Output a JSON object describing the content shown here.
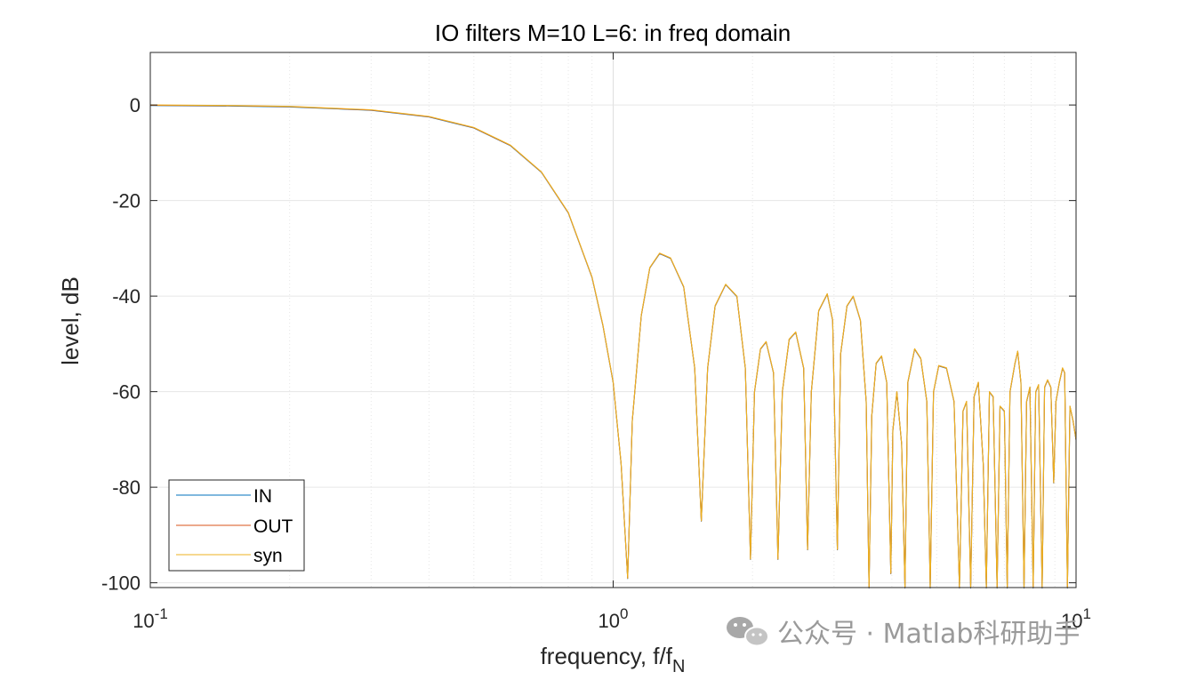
{
  "chart_data": {
    "type": "line",
    "title": "IO filters M=10 L=6: in freq domain",
    "xlabel": "frequency, f/f",
    "xlabel_sub": "N",
    "ylabel": "level, dB",
    "xscale": "log",
    "xlim": [
      0.1,
      10
    ],
    "ylim": [
      -101,
      11
    ],
    "x_ticks": [
      {
        "value": 0.1,
        "base": "10",
        "exp": "-1"
      },
      {
        "value": 1,
        "base": "10",
        "exp": "0"
      },
      {
        "value": 10,
        "base": "10",
        "exp": "1"
      }
    ],
    "y_ticks": [
      0,
      -20,
      -40,
      -60,
      -80,
      -100
    ],
    "y_tick_labels": [
      "0",
      "-20",
      "-40",
      "-60",
      "-80",
      "-100"
    ],
    "grid": true,
    "legend_position": "bottom-left",
    "series": [
      {
        "name": "IN",
        "color": "#0072BD"
      },
      {
        "name": "OUT",
        "color": "#D95319"
      },
      {
        "name": "syn",
        "color": "#EDB120"
      }
    ],
    "curve_points": [
      [
        0.1,
        0
      ],
      [
        0.15,
        -0.1
      ],
      [
        0.2,
        -0.3
      ],
      [
        0.3,
        -1.0
      ],
      [
        0.4,
        -2.4
      ],
      [
        0.5,
        -4.7
      ],
      [
        0.6,
        -8.4
      ],
      [
        0.7,
        -14.0
      ],
      [
        0.8,
        -22.5
      ],
      [
        0.9,
        -36.0
      ],
      [
        0.95,
        -46.0
      ],
      [
        1.0,
        -58.0
      ],
      [
        1.04,
        -75.0
      ],
      [
        1.075,
        -99.0
      ],
      [
        1.1,
        -66.0
      ],
      [
        1.15,
        -44.0
      ],
      [
        1.2,
        -34.0
      ],
      [
        1.26,
        -31.0
      ],
      [
        1.33,
        -32.0
      ],
      [
        1.42,
        -38.0
      ],
      [
        1.5,
        -55.0
      ],
      [
        1.55,
        -87.0
      ],
      [
        1.6,
        -55.0
      ],
      [
        1.66,
        -42.0
      ],
      [
        1.75,
        -37.5
      ],
      [
        1.85,
        -40.0
      ],
      [
        1.93,
        -55.0
      ],
      [
        1.98,
        -95.0
      ],
      [
        2.02,
        -60.0
      ],
      [
        2.08,
        -51.0
      ],
      [
        2.14,
        -49.5
      ],
      [
        2.22,
        -56.0
      ],
      [
        2.27,
        -95.0
      ],
      [
        2.32,
        -60.0
      ],
      [
        2.4,
        -49.0
      ],
      [
        2.48,
        -47.5
      ],
      [
        2.58,
        -55.0
      ],
      [
        2.63,
        -93.0
      ],
      [
        2.68,
        -60.0
      ],
      [
        2.78,
        -43.0
      ],
      [
        2.9,
        -39.5
      ],
      [
        2.98,
        -45.0
      ],
      [
        3.05,
        -93.0
      ],
      [
        3.1,
        -52.0
      ],
      [
        3.2,
        -42.0
      ],
      [
        3.3,
        -40.0
      ],
      [
        3.42,
        -45.0
      ],
      [
        3.52,
        -62.0
      ],
      [
        3.57,
        -101.0
      ],
      [
        3.62,
        -65.0
      ],
      [
        3.7,
        -54.0
      ],
      [
        3.8,
        -52.5
      ],
      [
        3.9,
        -58.0
      ],
      [
        3.98,
        -98.0
      ],
      [
        4.02,
        -68.0
      ],
      [
        4.1,
        -60.0
      ],
      [
        4.2,
        -71.0
      ],
      [
        4.27,
        -101.0
      ],
      [
        4.33,
        -58.0
      ],
      [
        4.48,
        -51.0
      ],
      [
        4.62,
        -53.0
      ],
      [
        4.76,
        -62.0
      ],
      [
        4.84,
        -101.0
      ],
      [
        4.92,
        -60.0
      ],
      [
        5.05,
        -54.5
      ],
      [
        5.25,
        -55.0
      ],
      [
        5.45,
        -62.0
      ],
      [
        5.6,
        -101.0
      ],
      [
        5.7,
        -64.0
      ],
      [
        5.8,
        -62.0
      ],
      [
        5.92,
        -101.0
      ],
      [
        6.02,
        -61.0
      ],
      [
        6.15,
        -58.0
      ],
      [
        6.3,
        -75.0
      ],
      [
        6.4,
        -101.0
      ],
      [
        6.5,
        -60.0
      ],
      [
        6.62,
        -61.0
      ],
      [
        6.75,
        -101.0
      ],
      [
        6.85,
        -63.0
      ],
      [
        7.0,
        -64.0
      ],
      [
        7.1,
        -101.0
      ],
      [
        7.2,
        -60.0
      ],
      [
        7.38,
        -54.0
      ],
      [
        7.48,
        -51.5
      ],
      [
        7.6,
        -58.0
      ],
      [
        7.72,
        -101.0
      ],
      [
        7.82,
        -62.0
      ],
      [
        7.95,
        -59.0
      ],
      [
        8.08,
        -101.0
      ],
      [
        8.18,
        -60.0
      ],
      [
        8.3,
        -58.5
      ],
      [
        8.45,
        -101.0
      ],
      [
        8.55,
        -59.0
      ],
      [
        8.68,
        -57.5
      ],
      [
        8.82,
        -59.0
      ],
      [
        8.95,
        -79.0
      ],
      [
        9.05,
        -62.0
      ],
      [
        9.2,
        -58.0
      ],
      [
        9.35,
        -55.0
      ],
      [
        9.45,
        -56.0
      ],
      [
        9.58,
        -101.0
      ],
      [
        9.7,
        -63.0
      ],
      [
        9.85,
        -66.0
      ],
      [
        10.0,
        -70.0
      ]
    ]
  },
  "watermark": {
    "text": "公众号 · Matlab科研助手",
    "icon": "wechat-icon"
  }
}
